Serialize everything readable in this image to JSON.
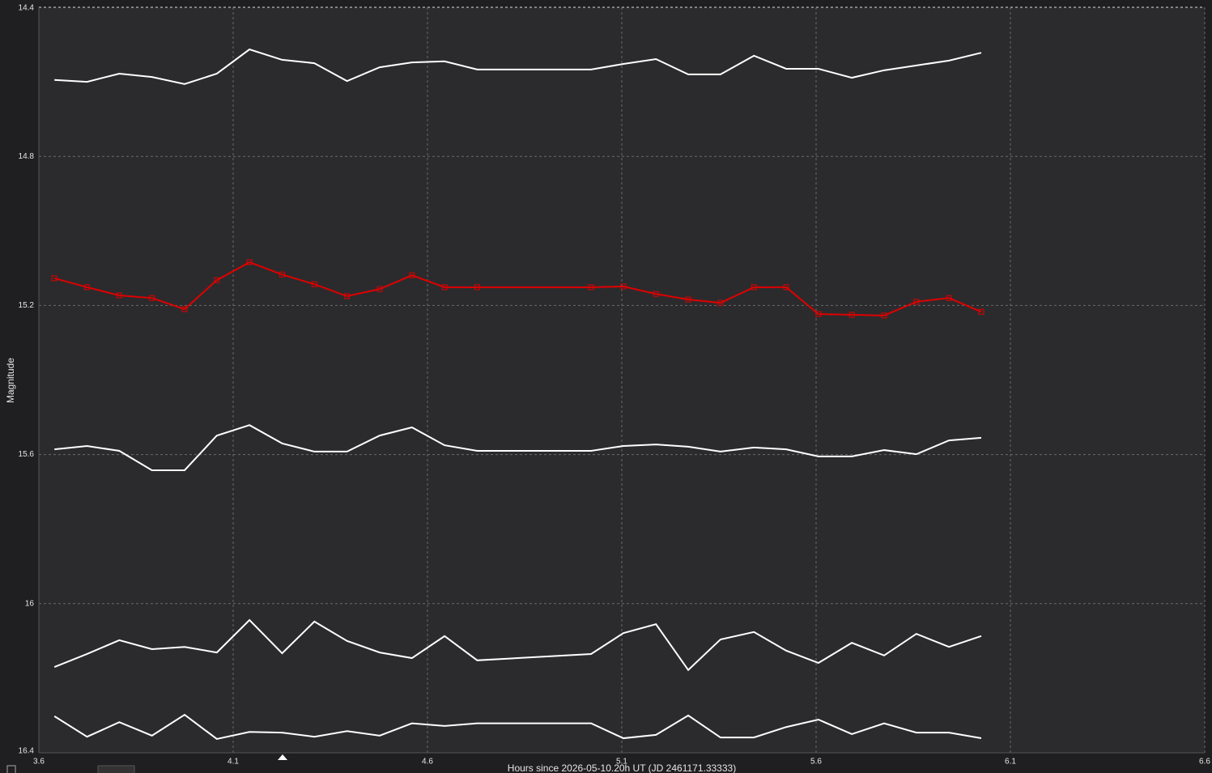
{
  "chart_data": {
    "type": "line",
    "xlabel": "Hours since 2026-05-10.20h UT (JD 2461171.33333)",
    "ylabel": "Magnitude",
    "x": [
      3.64,
      3.724,
      3.807,
      3.891,
      3.975,
      4.058,
      4.142,
      4.226,
      4.309,
      4.393,
      4.477,
      4.56,
      4.644,
      4.728,
      5.021,
      5.104,
      5.188,
      5.271,
      5.354,
      5.44,
      5.523,
      5.606,
      5.692,
      5.775,
      5.858,
      5.942,
      6.025
    ],
    "series": [
      {
        "color": "#ffffff",
        "values": [
          14.595,
          14.6,
          14.578,
          14.587,
          14.606,
          14.578,
          14.513,
          14.541,
          14.55,
          14.598,
          14.561,
          14.548,
          14.545,
          14.567,
          14.567,
          14.552,
          14.539,
          14.58,
          14.58,
          14.53,
          14.565,
          14.565,
          14.589,
          14.569,
          14.556,
          14.543,
          14.522
        ]
      },
      {
        "color": "#e00000",
        "marker": "square",
        "values": [
          15.127,
          15.151,
          15.173,
          15.18,
          15.21,
          15.132,
          15.084,
          15.117,
          15.143,
          15.175,
          15.156,
          15.119,
          15.151,
          15.151,
          15.151,
          15.149,
          15.169,
          15.184,
          15.193,
          15.151,
          15.151,
          15.223,
          15.225,
          15.227,
          15.19,
          15.18,
          15.217
        ]
      },
      {
        "color": "#ffffff",
        "values": [
          15.586,
          15.577,
          15.59,
          15.642,
          15.642,
          15.549,
          15.521,
          15.57,
          15.592,
          15.592,
          15.549,
          15.527,
          15.575,
          15.59,
          15.59,
          15.577,
          15.573,
          15.579,
          15.592,
          15.581,
          15.586,
          15.605,
          15.605,
          15.588,
          15.599,
          15.562,
          15.555
        ]
      },
      {
        "color": "#ffffff",
        "values": [
          16.17,
          16.135,
          16.098,
          16.122,
          16.116,
          16.131,
          16.044,
          16.133,
          16.048,
          16.1,
          16.131,
          16.146,
          16.087,
          16.152,
          16.135,
          16.079,
          16.055,
          16.178,
          16.096,
          16.076,
          16.126,
          16.159,
          16.105,
          16.139,
          16.081,
          16.116,
          16.087
        ]
      },
      {
        "color": "#ffffff",
        "values": [
          16.302,
          16.357,
          16.318,
          16.354,
          16.298,
          16.363,
          16.344,
          16.346,
          16.357,
          16.342,
          16.354,
          16.321,
          16.328,
          16.321,
          16.321,
          16.361,
          16.352,
          16.3,
          16.359,
          16.359,
          16.331,
          16.311,
          16.35,
          16.321,
          16.346,
          16.346,
          16.361
        ]
      }
    ],
    "xlim": [
      3.6,
      6.6
    ],
    "xticks": [
      3.6,
      4.1,
      4.6,
      5.1,
      5.6,
      6.1,
      6.6
    ],
    "ylim": [
      14.4,
      16.4
    ],
    "yticks": [
      14.4,
      14.8,
      15.2,
      15.6,
      16,
      16.4
    ],
    "y_inverted": true,
    "grid": true
  }
}
